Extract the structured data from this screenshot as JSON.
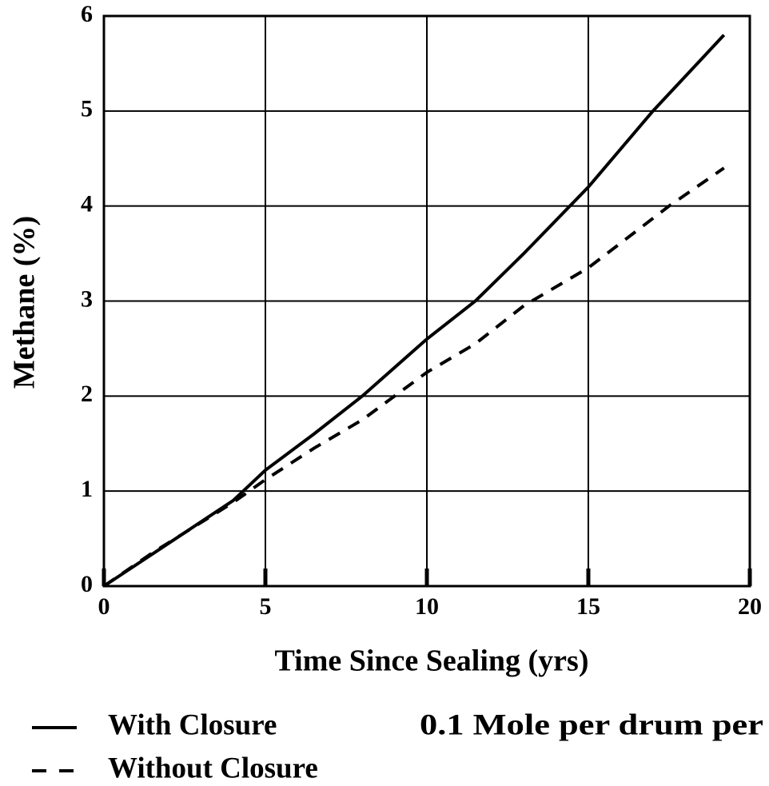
{
  "chart_data": {
    "type": "line",
    "xlabel": "Time Since Sealing (yrs)",
    "ylabel": "Methane (%)",
    "annotation": "0.1 Mole per drum per",
    "xlim": [
      0,
      20
    ],
    "xticks": [
      0,
      5,
      10,
      15,
      20
    ],
    "ylim": [
      0,
      6
    ],
    "yticks": [
      0,
      1,
      2,
      3,
      4,
      5,
      6
    ],
    "grid": true,
    "series": [
      {
        "name": "With Closure",
        "color": "#000000",
        "style": "solid",
        "x": [
          0,
          2,
          4,
          5,
          6.5,
          8,
          10,
          11.5,
          13,
          15,
          17,
          19.2
        ],
        "values": [
          0,
          0.45,
          0.9,
          1.22,
          1.6,
          2.0,
          2.6,
          3.0,
          3.5,
          4.2,
          5.0,
          5.8
        ]
      },
      {
        "name": "Without Closure",
        "color": "#000000",
        "style": "dashed",
        "x": [
          0,
          1.5,
          4,
          5,
          6.5,
          8,
          10,
          11.5,
          13,
          15,
          17.5,
          19.2
        ],
        "values": [
          0,
          0.35,
          0.88,
          1.12,
          1.45,
          1.75,
          2.25,
          2.55,
          2.95,
          3.35,
          4.0,
          4.4
        ]
      }
    ]
  }
}
